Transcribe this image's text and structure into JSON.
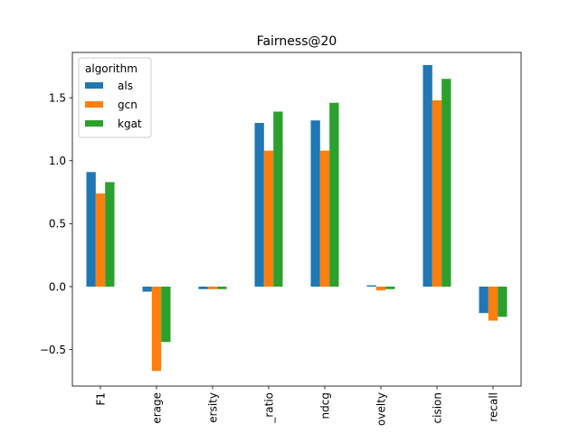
{
  "chart_data": {
    "type": "bar",
    "title": "Fairness@20",
    "categories": [
      "F1",
      "erage",
      "ersity",
      "_ratio",
      "ndcg",
      "ovelty",
      "cision",
      "recall"
    ],
    "series": [
      {
        "name": "als",
        "color": "#1f77b4",
        "values": [
          0.91,
          -0.04,
          -0.02,
          1.3,
          1.32,
          0.01,
          1.76,
          -0.21
        ]
      },
      {
        "name": "gcn",
        "color": "#ff7f0e",
        "values": [
          0.74,
          -0.67,
          -0.02,
          1.08,
          1.08,
          -0.03,
          1.48,
          -0.27
        ]
      },
      {
        "name": "kgat",
        "color": "#2ca02c",
        "values": [
          0.83,
          -0.44,
          -0.02,
          1.39,
          1.46,
          -0.02,
          1.65,
          -0.24
        ]
      }
    ],
    "ylim": [
      -0.79,
      1.86
    ],
    "yticks": [
      -0.5,
      0.0,
      0.5,
      1.0,
      1.5
    ],
    "ytick_labels": [
      "−0.5",
      "0.0",
      "0.5",
      "1.0",
      "1.5"
    ],
    "xlabel": "",
    "ylabel": "",
    "legend": {
      "title": "algorithm",
      "placement": "top-left"
    },
    "grid": false
  }
}
